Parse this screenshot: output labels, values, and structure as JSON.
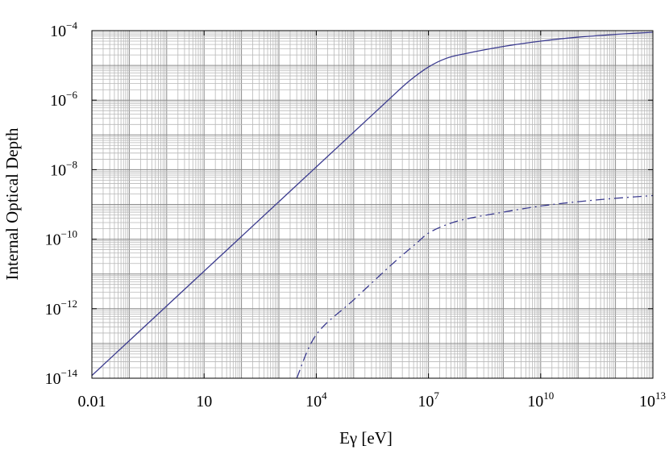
{
  "chart_data": {
    "type": "line",
    "title": "",
    "xlabel": "Eγ [eV]",
    "ylabel": "Internal Optical Depth",
    "x_scale": "log",
    "y_scale": "log",
    "xlim": [
      0.01,
      10000000000000
    ],
    "ylim": [
      1e-14,
      0.0001
    ],
    "grid": true,
    "legend": "none",
    "x_ticks": [
      {
        "value": 0.01,
        "label": "0.01"
      },
      {
        "value": 10,
        "label": "10"
      },
      {
        "value": 10000,
        "base": "10",
        "exp": "4"
      },
      {
        "value": 10000000,
        "base": "10",
        "exp": "7"
      },
      {
        "value": 10000000000,
        "base": "10",
        "exp": "10"
      },
      {
        "value": 10000000000000,
        "base": "10",
        "exp": "13"
      }
    ],
    "y_ticks": [
      {
        "value": 0.0001,
        "base": "10",
        "exp": "−4"
      },
      {
        "value": 1e-06,
        "base": "10",
        "exp": "−6"
      },
      {
        "value": 1e-08,
        "base": "10",
        "exp": "−8"
      },
      {
        "value": 1e-10,
        "base": "10",
        "exp": "−10"
      },
      {
        "value": 1e-12,
        "base": "10",
        "exp": "−12"
      },
      {
        "value": 1e-14,
        "base": "10",
        "exp": "−14"
      }
    ],
    "series": [
      {
        "style": "solid",
        "color": "#3b3b8f",
        "x": [
          0.01,
          0.1,
          1,
          10,
          100,
          1000,
          10000,
          100000,
          1000000,
          3000000,
          10000000,
          30000000,
          100000000,
          1000000000,
          10000000000,
          100000000000,
          1000000000000,
          10000000000000
        ],
        "y": [
          1.2e-14,
          1.2e-13,
          1.2e-12,
          1.2e-11,
          1.2e-10,
          1.2e-09,
          1.2e-08,
          1.2e-07,
          1.2e-06,
          3.5e-06,
          9e-06,
          1.6e-05,
          2.2e-05,
          3.5e-05,
          5e-05,
          6.5e-05,
          7.8e-05,
          9e-05
        ]
      },
      {
        "style": "dash-dot",
        "color": "#3b3b8f",
        "x": [
          3000,
          10000,
          100000,
          1000000,
          5000000,
          10000000,
          30000000,
          100000000,
          1000000000,
          10000000000,
          100000000000,
          1000000000000,
          10000000000000
        ],
        "y": [
          1e-14,
          1.8e-13,
          1.8e-12,
          1.8e-11,
          8e-11,
          1.5e-10,
          2.6e-10,
          3.8e-10,
          6e-10,
          9e-10,
          1.2e-09,
          1.5e-09,
          1.8e-09
        ]
      }
    ]
  }
}
